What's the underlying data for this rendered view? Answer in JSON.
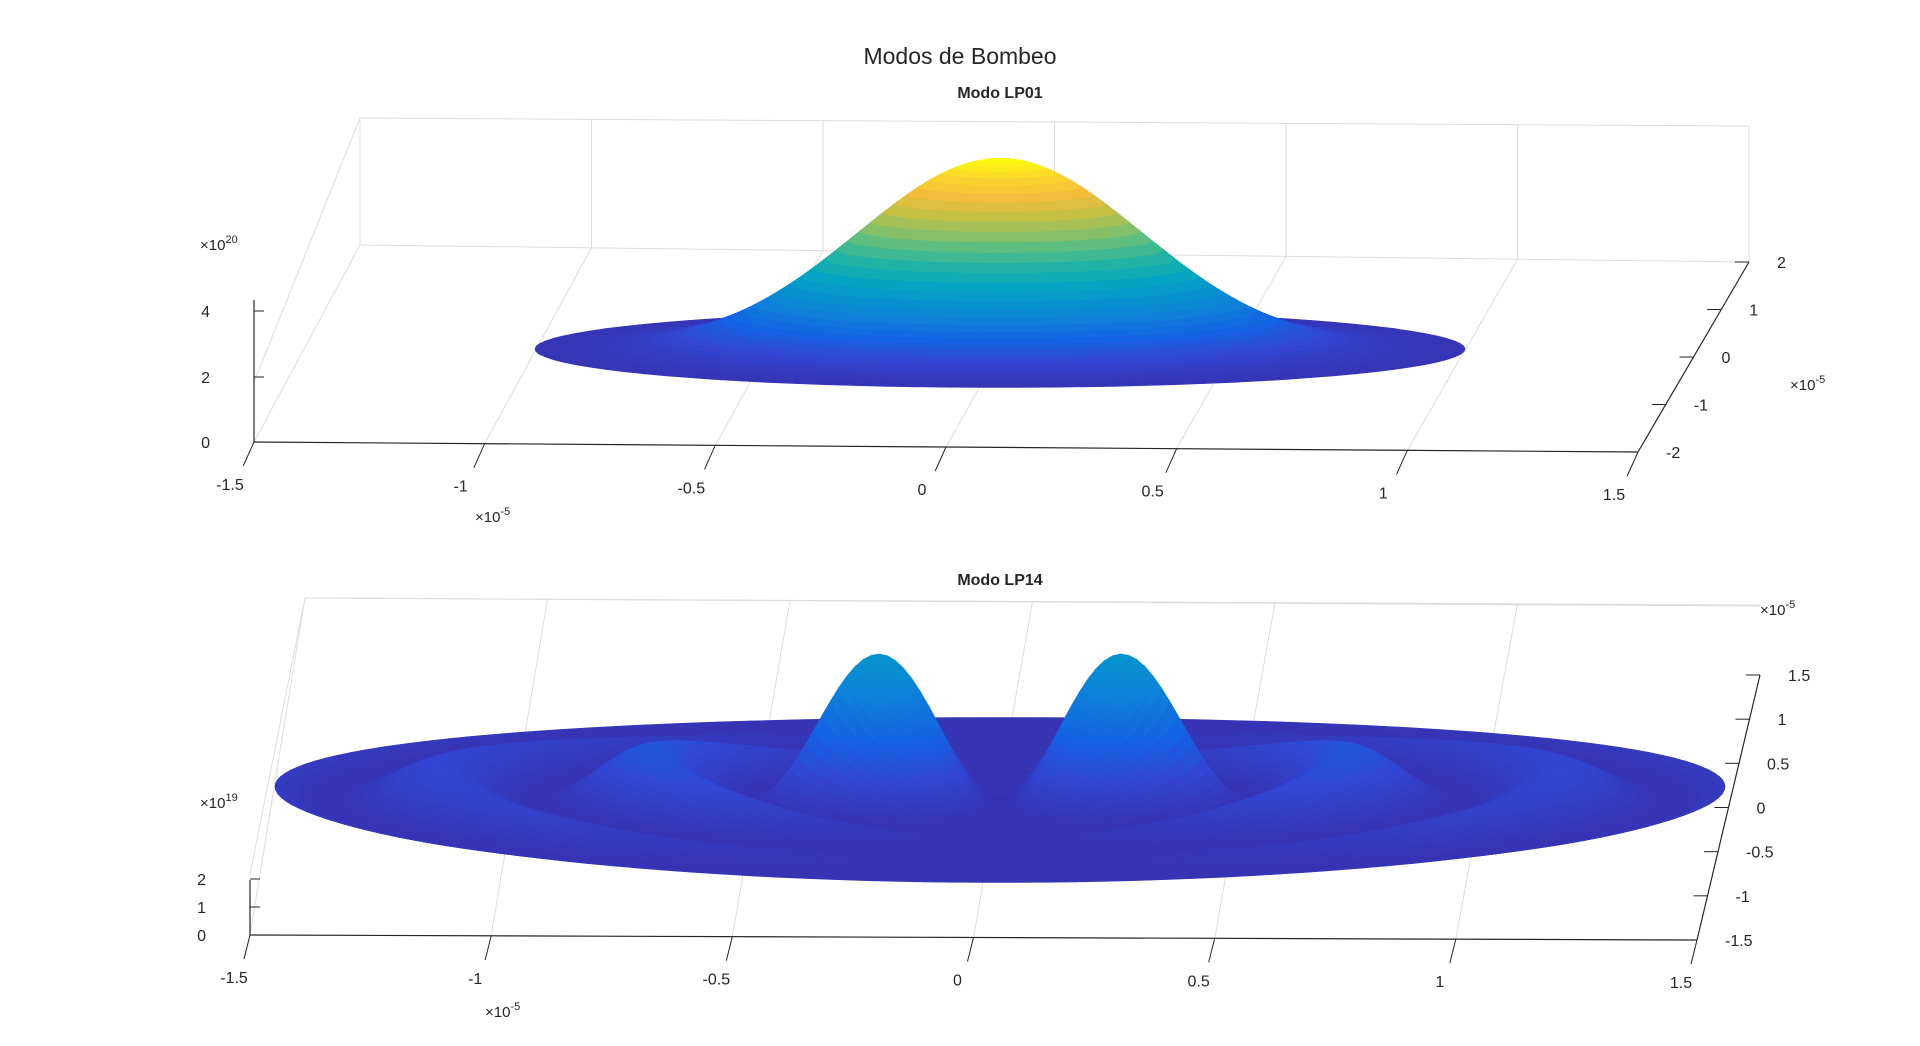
{
  "figure": {
    "title": "Modos de Bombeo"
  },
  "colors": {
    "axis": "#262626",
    "grid": "#dcdcdc",
    "background": "#ffffff"
  },
  "chart_data": [
    {
      "type": "surface",
      "title": "Modo LP01",
      "xlabel": "",
      "ylabel": "",
      "zlabel": "",
      "grid": true,
      "colormap": "parula",
      "mode": {
        "l": 0,
        "m": 1
      },
      "x_ticks": [
        "-1.5",
        "-1",
        "-0.5",
        "0",
        "0.5",
        "1",
        "1.5"
      ],
      "x_tick_values": [
        -1.5,
        -1,
        -0.5,
        0,
        0.5,
        1,
        1.5
      ],
      "x_exponent": {
        "base": "×10",
        "exp": "-5"
      },
      "y_ticks": [
        "-2",
        "-1",
        "0",
        "1",
        "2"
      ],
      "y_tick_values": [
        -2,
        -1,
        0,
        1,
        2
      ],
      "y_exponent": {
        "base": "×10",
        "exp": "-5"
      },
      "z_ticks": [
        "0",
        "2",
        "4"
      ],
      "z_tick_values": [
        0,
        2,
        4
      ],
      "z_exponent": {
        "base": "×10",
        "exp": "20"
      },
      "xlim": [
        -1.5,
        1.5
      ],
      "ylim": [
        -2,
        2
      ],
      "zlim": [
        0,
        4
      ],
      "peak_z": 5.8
    },
    {
      "type": "surface",
      "title": "Modo LP14",
      "xlabel": "",
      "ylabel": "",
      "zlabel": "",
      "grid": true,
      "colormap": "parula",
      "mode": {
        "l": 1,
        "m": 4
      },
      "x_ticks": [
        "-1.5",
        "-1",
        "-0.5",
        "0",
        "0.5",
        "1",
        "1.5"
      ],
      "x_tick_values": [
        -1.5,
        -1,
        -0.5,
        0,
        0.5,
        1,
        1.5
      ],
      "x_exponent": {
        "base": "×10",
        "exp": "-5"
      },
      "y_ticks": [
        "-1.5",
        "-1",
        "-0.5",
        "0",
        "0.5",
        "1",
        "1.5"
      ],
      "y_tick_values": [
        -1.5,
        -1,
        -0.5,
        0,
        0.5,
        1,
        1.5
      ],
      "y_exponent": {
        "base": "×10",
        "exp": "-5"
      },
      "z_ticks": [
        "0",
        "1",
        "2"
      ],
      "z_tick_values": [
        0,
        1,
        2
      ],
      "z_exponent": {
        "base": "×10",
        "exp": "19"
      },
      "xlim": [
        -1.5,
        1.5
      ],
      "ylim": [
        -1.5,
        1.5
      ],
      "zlim": [
        0,
        2
      ],
      "peak_z": 4.2
    }
  ]
}
